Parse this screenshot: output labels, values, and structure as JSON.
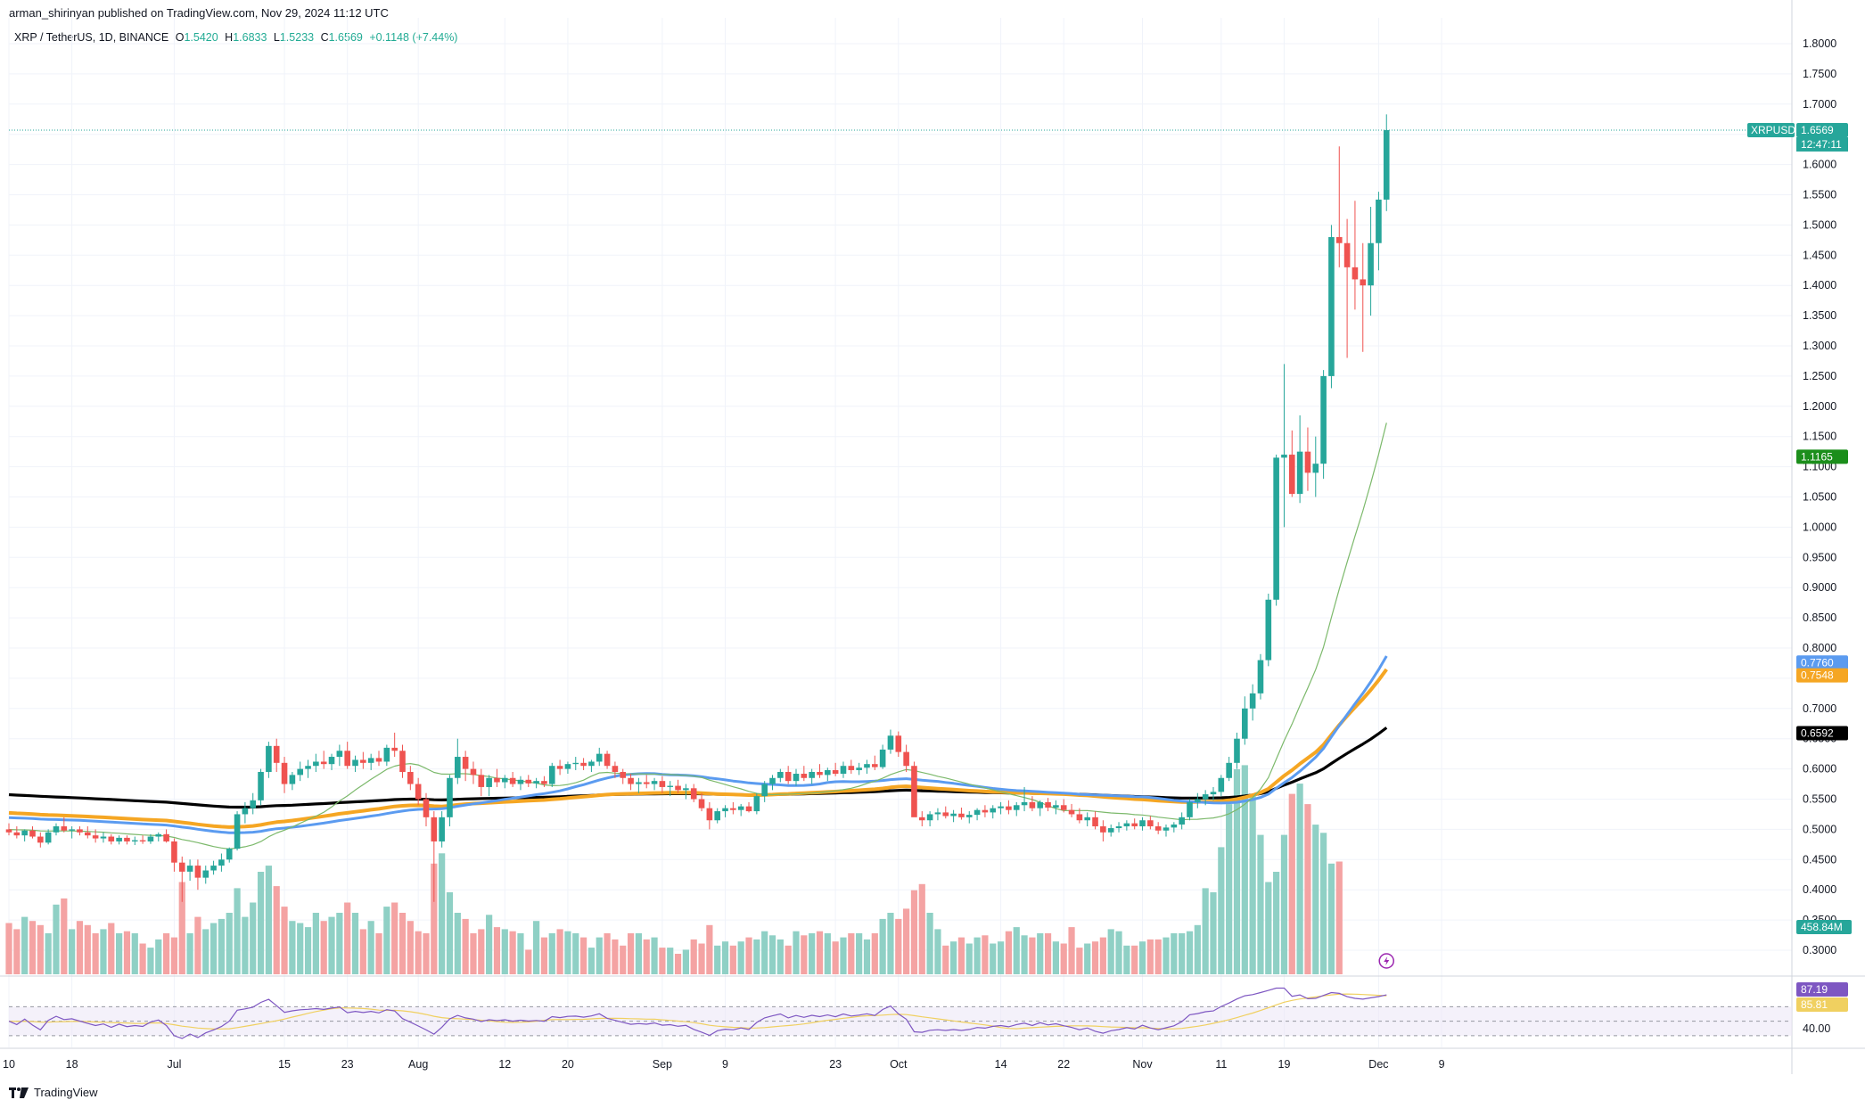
{
  "publisher": "arman_shirinyan published on TradingView.com, Nov 29, 2024 11:12 UTC",
  "legend": {
    "symbol": "XRP / TetherUS, 1D, BINANCE",
    "o_label": "O",
    "o_value": "1.5420",
    "h_label": "H",
    "h_value": "1.6833",
    "l_label": "L",
    "l_value": "1.5233",
    "c_label": "C",
    "c_value": "1.6569",
    "change": "+0.1148 (+7.44%)"
  },
  "footer": {
    "brand": "TradingView"
  },
  "colors": {
    "up": "#26a69a",
    "down": "#ef5350",
    "vol_up": "#8fd0c5",
    "vol_down": "#f4a3a3",
    "ma_thin": "#7cb96b",
    "ma_blue": "#5b9bf0",
    "ma_orange": "#f5a623",
    "ma_black": "#000000",
    "rsi": "#7e57c2",
    "rsi_ma": "#f0d060",
    "rsi_fill": "#ede7f6"
  },
  "chart_data": {
    "type": "candlestick",
    "symbol": "XRPUSDT",
    "price_axis": {
      "min": 0.28,
      "max": 1.82,
      "ticks": [
        "1.8000",
        "1.7500",
        "1.7000",
        "1.6500",
        "1.6000",
        "1.5500",
        "1.5000",
        "1.4500",
        "1.4000",
        "1.3500",
        "1.3000",
        "1.2500",
        "1.2000",
        "1.1500",
        "1.1000",
        "1.0500",
        "1.0000",
        "0.9500",
        "0.9000",
        "0.8500",
        "0.8000",
        "0.7500",
        "0.7000",
        "0.6500",
        "0.6000",
        "0.5500",
        "0.5000",
        "0.4500",
        "0.4000",
        "0.3500",
        "0.3000"
      ]
    },
    "date_axis": {
      "labels": [
        {
          "text": "10",
          "day": 0
        },
        {
          "text": "18",
          "day": 8
        },
        {
          "text": "Jul",
          "day": 21
        },
        {
          "text": "15",
          "day": 35
        },
        {
          "text": "23",
          "day": 43
        },
        {
          "text": "Aug",
          "day": 52
        },
        {
          "text": "12",
          "day": 63
        },
        {
          "text": "20",
          "day": 71
        },
        {
          "text": "Sep",
          "day": 83
        },
        {
          "text": "9",
          "day": 91
        },
        {
          "text": "23",
          "day": 105
        },
        {
          "text": "Oct",
          "day": 113
        },
        {
          "text": "14",
          "day": 126
        },
        {
          "text": "22",
          "day": 134
        },
        {
          "text": "Nov",
          "day": 144
        },
        {
          "text": "11",
          "day": 154
        },
        {
          "text": "19",
          "day": 162
        },
        {
          "text": "Dec",
          "day": 174
        },
        {
          "text": "9",
          "day": 182
        }
      ]
    },
    "candles_ohlc": [
      [
        0.5,
        0.51,
        0.49,
        0.495
      ],
      [
        0.495,
        0.505,
        0.485,
        0.49
      ],
      [
        0.49,
        0.5,
        0.48,
        0.498
      ],
      [
        0.498,
        0.505,
        0.485,
        0.488
      ],
      [
        0.488,
        0.495,
        0.47,
        0.478
      ],
      [
        0.478,
        0.5,
        0.475,
        0.495
      ],
      [
        0.495,
        0.51,
        0.49,
        0.505
      ],
      [
        0.505,
        0.52,
        0.495,
        0.498
      ],
      [
        0.498,
        0.505,
        0.485,
        0.5
      ],
      [
        0.5,
        0.505,
        0.49,
        0.495
      ],
      [
        0.495,
        0.505,
        0.485,
        0.49
      ],
      [
        0.49,
        0.5,
        0.478,
        0.485
      ],
      [
        0.485,
        0.495,
        0.478,
        0.488
      ],
      [
        0.488,
        0.492,
        0.475,
        0.48
      ],
      [
        0.48,
        0.49,
        0.475,
        0.486
      ],
      [
        0.486,
        0.49,
        0.475,
        0.48
      ],
      [
        0.48,
        0.488,
        0.474,
        0.482
      ],
      [
        0.482,
        0.49,
        0.476,
        0.48
      ],
      [
        0.48,
        0.492,
        0.476,
        0.488
      ],
      [
        0.488,
        0.495,
        0.48,
        0.492
      ],
      [
        0.492,
        0.5,
        0.478,
        0.48
      ],
      [
        0.48,
        0.485,
        0.43,
        0.445
      ],
      [
        0.445,
        0.455,
        0.38,
        0.43
      ],
      [
        0.43,
        0.45,
        0.415,
        0.44
      ],
      [
        0.44,
        0.45,
        0.4,
        0.42
      ],
      [
        0.42,
        0.44,
        0.41,
        0.432
      ],
      [
        0.432,
        0.448,
        0.425,
        0.44
      ],
      [
        0.44,
        0.46,
        0.43,
        0.45
      ],
      [
        0.45,
        0.47,
        0.445,
        0.468
      ],
      [
        0.468,
        0.53,
        0.465,
        0.525
      ],
      [
        0.525,
        0.545,
        0.51,
        0.535
      ],
      [
        0.535,
        0.56,
        0.525,
        0.548
      ],
      [
        0.548,
        0.6,
        0.54,
        0.595
      ],
      [
        0.595,
        0.645,
        0.585,
        0.638
      ],
      [
        0.638,
        0.65,
        0.595,
        0.61
      ],
      [
        0.61,
        0.62,
        0.56,
        0.575
      ],
      [
        0.575,
        0.595,
        0.565,
        0.59
      ],
      [
        0.59,
        0.612,
        0.58,
        0.6
      ],
      [
        0.6,
        0.615,
        0.585,
        0.605
      ],
      [
        0.605,
        0.625,
        0.595,
        0.612
      ],
      [
        0.612,
        0.63,
        0.6,
        0.608
      ],
      [
        0.608,
        0.625,
        0.598,
        0.62
      ],
      [
        0.62,
        0.64,
        0.605,
        0.63
      ],
      [
        0.63,
        0.645,
        0.6,
        0.605
      ],
      [
        0.605,
        0.622,
        0.595,
        0.615
      ],
      [
        0.615,
        0.628,
        0.6,
        0.61
      ],
      [
        0.61,
        0.625,
        0.598,
        0.618
      ],
      [
        0.618,
        0.63,
        0.605,
        0.612
      ],
      [
        0.612,
        0.64,
        0.605,
        0.635
      ],
      [
        0.635,
        0.66,
        0.62,
        0.63
      ],
      [
        0.63,
        0.64,
        0.585,
        0.595
      ],
      [
        0.595,
        0.605,
        0.565,
        0.575
      ],
      [
        0.575,
        0.585,
        0.54,
        0.55
      ],
      [
        0.55,
        0.56,
        0.505,
        0.52
      ],
      [
        0.52,
        0.53,
        0.38,
        0.48
      ],
      [
        0.48,
        0.53,
        0.47,
        0.52
      ],
      [
        0.52,
        0.59,
        0.505,
        0.585
      ],
      [
        0.585,
        0.65,
        0.575,
        0.62
      ],
      [
        0.62,
        0.63,
        0.58,
        0.6
      ],
      [
        0.6,
        0.612,
        0.575,
        0.59
      ],
      [
        0.59,
        0.6,
        0.555,
        0.57
      ],
      [
        0.57,
        0.59,
        0.555,
        0.585
      ],
      [
        0.585,
        0.6,
        0.57,
        0.578
      ],
      [
        0.578,
        0.59,
        0.568,
        0.585
      ],
      [
        0.585,
        0.595,
        0.57,
        0.575
      ],
      [
        0.575,
        0.588,
        0.565,
        0.582
      ],
      [
        0.582,
        0.59,
        0.57,
        0.576
      ],
      [
        0.576,
        0.585,
        0.568,
        0.58
      ],
      [
        0.58,
        0.588,
        0.57,
        0.575
      ],
      [
        0.575,
        0.61,
        0.57,
        0.605
      ],
      [
        0.605,
        0.615,
        0.59,
        0.6
      ],
      [
        0.6,
        0.612,
        0.592,
        0.608
      ],
      [
        0.608,
        0.62,
        0.598,
        0.61
      ],
      [
        0.61,
        0.618,
        0.598,
        0.605
      ],
      [
        0.605,
        0.615,
        0.595,
        0.612
      ],
      [
        0.612,
        0.635,
        0.605,
        0.625
      ],
      [
        0.625,
        0.63,
        0.6,
        0.605
      ],
      [
        0.605,
        0.612,
        0.585,
        0.595
      ],
      [
        0.595,
        0.6,
        0.575,
        0.585
      ],
      [
        0.585,
        0.592,
        0.565,
        0.575
      ],
      [
        0.575,
        0.585,
        0.56,
        0.578
      ],
      [
        0.578,
        0.59,
        0.568,
        0.575
      ],
      [
        0.575,
        0.585,
        0.565,
        0.58
      ],
      [
        0.58,
        0.588,
        0.56,
        0.57
      ],
      [
        0.57,
        0.58,
        0.555,
        0.572
      ],
      [
        0.572,
        0.582,
        0.56,
        0.565
      ],
      [
        0.565,
        0.575,
        0.55,
        0.568
      ],
      [
        0.568,
        0.575,
        0.545,
        0.55
      ],
      [
        0.55,
        0.56,
        0.53,
        0.535
      ],
      [
        0.535,
        0.545,
        0.5,
        0.515
      ],
      [
        0.515,
        0.535,
        0.51,
        0.53
      ],
      [
        0.53,
        0.54,
        0.52,
        0.535
      ],
      [
        0.535,
        0.545,
        0.525,
        0.532
      ],
      [
        0.532,
        0.542,
        0.522,
        0.538
      ],
      [
        0.538,
        0.545,
        0.528,
        0.53
      ],
      [
        0.53,
        0.56,
        0.525,
        0.555
      ],
      [
        0.555,
        0.58,
        0.545,
        0.575
      ],
      [
        0.575,
        0.59,
        0.565,
        0.585
      ],
      [
        0.585,
        0.6,
        0.578,
        0.595
      ],
      [
        0.595,
        0.605,
        0.575,
        0.58
      ],
      [
        0.58,
        0.6,
        0.572,
        0.592
      ],
      [
        0.592,
        0.605,
        0.58,
        0.585
      ],
      [
        0.585,
        0.6,
        0.575,
        0.595
      ],
      [
        0.595,
        0.608,
        0.585,
        0.59
      ],
      [
        0.59,
        0.602,
        0.58,
        0.598
      ],
      [
        0.598,
        0.61,
        0.588,
        0.592
      ],
      [
        0.592,
        0.612,
        0.585,
        0.605
      ],
      [
        0.605,
        0.615,
        0.592,
        0.598
      ],
      [
        0.598,
        0.61,
        0.59,
        0.602
      ],
      [
        0.602,
        0.615,
        0.592,
        0.608
      ],
      [
        0.608,
        0.622,
        0.598,
        0.603
      ],
      [
        0.603,
        0.64,
        0.6,
        0.632
      ],
      [
        0.632,
        0.665,
        0.625,
        0.655
      ],
      [
        0.655,
        0.662,
        0.62,
        0.628
      ],
      [
        0.628,
        0.64,
        0.595,
        0.605
      ],
      [
        0.605,
        0.612,
        0.54,
        0.52
      ],
      [
        0.52,
        0.53,
        0.505,
        0.515
      ],
      [
        0.515,
        0.53,
        0.505,
        0.525
      ],
      [
        0.525,
        0.535,
        0.515,
        0.528
      ],
      [
        0.528,
        0.538,
        0.518,
        0.522
      ],
      [
        0.522,
        0.532,
        0.512,
        0.526
      ],
      [
        0.526,
        0.536,
        0.516,
        0.52
      ],
      [
        0.52,
        0.53,
        0.51,
        0.524
      ],
      [
        0.524,
        0.535,
        0.515,
        0.532
      ],
      [
        0.532,
        0.54,
        0.52,
        0.528
      ],
      [
        0.528,
        0.54,
        0.518,
        0.535
      ],
      [
        0.535,
        0.545,
        0.525,
        0.538
      ],
      [
        0.538,
        0.548,
        0.525,
        0.532
      ],
      [
        0.532,
        0.545,
        0.522,
        0.54
      ],
      [
        0.54,
        0.57,
        0.53,
        0.545
      ],
      [
        0.545,
        0.555,
        0.53,
        0.535
      ],
      [
        0.535,
        0.548,
        0.522,
        0.545
      ],
      [
        0.545,
        0.552,
        0.53,
        0.536
      ],
      [
        0.536,
        0.548,
        0.525,
        0.54
      ],
      [
        0.54,
        0.55,
        0.528,
        0.532
      ],
      [
        0.532,
        0.542,
        0.52,
        0.525
      ],
      [
        0.525,
        0.535,
        0.51,
        0.515
      ],
      [
        0.515,
        0.528,
        0.505,
        0.52
      ],
      [
        0.52,
        0.53,
        0.5,
        0.505
      ],
      [
        0.505,
        0.515,
        0.48,
        0.495
      ],
      [
        0.495,
        0.508,
        0.488,
        0.502
      ],
      [
        0.502,
        0.512,
        0.495,
        0.505
      ],
      [
        0.505,
        0.515,
        0.498,
        0.51
      ],
      [
        0.51,
        0.518,
        0.5,
        0.505
      ],
      [
        0.505,
        0.52,
        0.498,
        0.515
      ],
      [
        0.515,
        0.522,
        0.5,
        0.505
      ],
      [
        0.505,
        0.512,
        0.492,
        0.498
      ],
      [
        0.498,
        0.508,
        0.488,
        0.503
      ],
      [
        0.503,
        0.512,
        0.495,
        0.508
      ],
      [
        0.508,
        0.528,
        0.5,
        0.52
      ],
      [
        0.52,
        0.55,
        0.515,
        0.545
      ],
      [
        0.545,
        0.56,
        0.535,
        0.55
      ],
      [
        0.55,
        0.565,
        0.54,
        0.558
      ],
      [
        0.558,
        0.57,
        0.548,
        0.562
      ],
      [
        0.562,
        0.59,
        0.555,
        0.585
      ],
      [
        0.585,
        0.62,
        0.58,
        0.61
      ],
      [
        0.61,
        0.66,
        0.6,
        0.65
      ],
      [
        0.65,
        0.72,
        0.64,
        0.7
      ],
      [
        0.7,
        0.74,
        0.68,
        0.725
      ],
      [
        0.725,
        0.79,
        0.715,
        0.78
      ],
      [
        0.78,
        0.89,
        0.77,
        0.88
      ],
      [
        0.88,
        1.12,
        0.87,
        1.115
      ],
      [
        1.115,
        1.27,
        1.0,
        1.12
      ],
      [
        1.12,
        1.16,
        1.05,
        1.055
      ],
      [
        1.055,
        1.185,
        1.04,
        1.125
      ],
      [
        1.125,
        1.165,
        1.06,
        1.09
      ],
      [
        1.09,
        1.15,
        1.05,
        1.105
      ],
      [
        1.105,
        1.26,
        1.08,
        1.25
      ],
      [
        1.25,
        1.5,
        1.23,
        1.48
      ],
      [
        1.48,
        1.63,
        1.43,
        1.47
      ],
      [
        1.47,
        1.51,
        1.28,
        1.43
      ],
      [
        1.43,
        1.54,
        1.36,
        1.41
      ],
      [
        1.41,
        1.47,
        1.29,
        1.4
      ],
      [
        1.4,
        1.53,
        1.35,
        1.47
      ],
      [
        1.47,
        1.555,
        1.425,
        1.542
      ],
      [
        1.542,
        1.683,
        1.523,
        1.657
      ]
    ],
    "volume_rel": [
      0.25,
      0.22,
      0.28,
      0.26,
      0.24,
      0.2,
      0.34,
      0.37,
      0.22,
      0.26,
      0.24,
      0.2,
      0.22,
      0.25,
      0.2,
      0.21,
      0.2,
      0.15,
      0.13,
      0.17,
      0.2,
      0.18,
      0.45,
      0.2,
      0.28,
      0.22,
      0.25,
      0.27,
      0.3,
      0.42,
      0.28,
      0.35,
      0.5,
      0.53,
      0.43,
      0.33,
      0.26,
      0.25,
      0.23,
      0.3,
      0.26,
      0.28,
      0.3,
      0.35,
      0.3,
      0.22,
      0.26,
      0.2,
      0.33,
      0.35,
      0.3,
      0.26,
      0.21,
      0.2,
      0.54,
      0.59,
      0.4,
      0.3,
      0.27,
      0.2,
      0.22,
      0.29,
      0.23,
      0.22,
      0.21,
      0.2,
      0.12,
      0.26,
      0.18,
      0.2,
      0.22,
      0.21,
      0.2,
      0.18,
      0.13,
      0.18,
      0.2,
      0.17,
      0.14,
      0.2,
      0.2,
      0.17,
      0.18,
      0.13,
      0.13,
      0.1,
      0.12,
      0.17,
      0.15,
      0.24,
      0.14,
      0.16,
      0.14,
      0.16,
      0.18,
      0.17,
      0.21,
      0.19,
      0.17,
      0.14,
      0.21,
      0.19,
      0.2,
      0.21,
      0.2,
      0.16,
      0.18,
      0.2,
      0.2,
      0.17,
      0.2,
      0.27,
      0.3,
      0.27,
      0.32,
      0.41,
      0.44,
      0.3,
      0.22,
      0.14,
      0.16,
      0.18,
      0.15,
      0.18,
      0.19,
      0.15,
      0.16,
      0.21,
      0.23,
      0.19,
      0.18,
      0.2,
      0.2,
      0.16,
      0.15,
      0.23,
      0.13,
      0.15,
      0.16,
      0.18,
      0.22,
      0.21,
      0.14,
      0.14,
      0.16,
      0.17,
      0.17,
      0.18,
      0.2,
      0.2,
      0.21,
      0.24,
      0.42,
      0.4,
      0.62,
      0.83,
      1.0,
      1.02,
      0.88,
      0.68,
      0.45,
      0.5,
      0.68,
      0.88,
      0.93,
      0.83,
      0.73,
      0.69,
      0.54,
      0.55
    ],
    "ma_levels": [
      {
        "name": "MA fast",
        "value": 1.1165,
        "color": "#1b8e1b"
      },
      {
        "name": "MA blue",
        "value": 0.776,
        "color": "#5b9bf0"
      },
      {
        "name": "MA orange",
        "value": 0.7548,
        "color": "#f5a623"
      },
      {
        "name": "MA black",
        "value": 0.6592,
        "color": "#000000"
      }
    ],
    "price_label": {
      "symbol": "XRPUSDT",
      "value": "1.6569",
      "countdown": "12:47:11"
    },
    "ma_badges": [
      "1.1165",
      "0.7760",
      "0.7548",
      "0.6592"
    ],
    "volume_badge": "458.84M",
    "rsi": {
      "value": "87.19",
      "ma_value": "85.81",
      "axis_label": "40.00",
      "upper_band": 70,
      "lower_band": 30,
      "min": 20,
      "max": 100
    }
  }
}
